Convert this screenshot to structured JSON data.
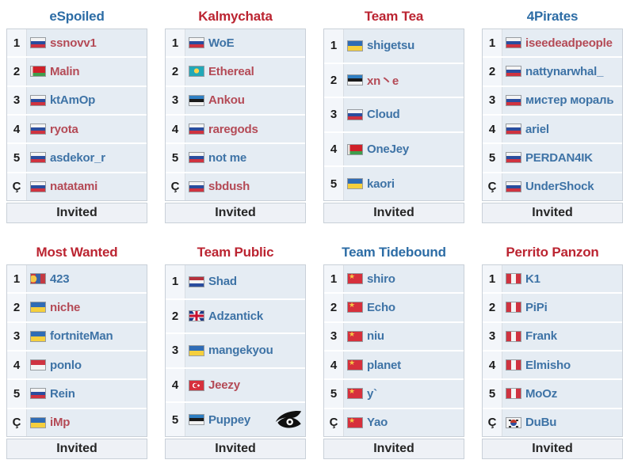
{
  "labels": {
    "invited": "Invited"
  },
  "colors": {
    "header_blue": "#2c6ca5",
    "header_red": "#bb2431",
    "link_blue": "#3e73a6",
    "link_red": "#b44a56",
    "row_background": "#e5ecf3",
    "logo_black": "#101010"
  },
  "flags": {
    "ru": "russia",
    "by": "belarus",
    "kz": "kazakhstan",
    "ee": "estonia",
    "ua": "ukraine",
    "mn": "mongolia",
    "id": "indonesia",
    "nl": "netherlands",
    "gb": "united-kingdom",
    "tr": "turkey",
    "cn": "china",
    "pe": "peru",
    "kr": "south-korea"
  },
  "teams": [
    {
      "name": "eSpoiled",
      "name_color": "blue",
      "players": [
        {
          "num": "1",
          "name": "ssnovv1",
          "flag": "ru",
          "color": "red"
        },
        {
          "num": "2",
          "name": "Malin",
          "flag": "by",
          "color": "red"
        },
        {
          "num": "3",
          "name": "ktAmOp",
          "flag": "ru",
          "color": "blue"
        },
        {
          "num": "4",
          "name": "ryota",
          "flag": "ru",
          "color": "red"
        },
        {
          "num": "5",
          "name": "asdekor_r",
          "flag": "ru",
          "color": "blue"
        },
        {
          "num": "Ç",
          "name": "natatami",
          "flag": "ru",
          "color": "red"
        }
      ]
    },
    {
      "name": "Kalmychata",
      "name_color": "red",
      "players": [
        {
          "num": "1",
          "name": "WoE",
          "flag": "ru",
          "color": "blue"
        },
        {
          "num": "2",
          "name": "Ethereal",
          "flag": "kz",
          "color": "red"
        },
        {
          "num": "3",
          "name": "Ankou",
          "flag": "ee",
          "color": "red"
        },
        {
          "num": "4",
          "name": "raregods",
          "flag": "ru",
          "color": "red"
        },
        {
          "num": "5",
          "name": "not me",
          "flag": "ru",
          "color": "blue"
        },
        {
          "num": "Ç",
          "name": "sbdush",
          "flag": "ru",
          "color": "red"
        }
      ]
    },
    {
      "name": "Team Tea",
      "name_color": "red",
      "players": [
        {
          "num": "1",
          "name": "shigetsu",
          "flag": "ua",
          "color": "blue"
        },
        {
          "num": "2",
          "name": "xn丶e",
          "flag": "ee",
          "color": "red"
        },
        {
          "num": "3",
          "name": "Cloud",
          "flag": "ru",
          "color": "blue"
        },
        {
          "num": "4",
          "name": "OneJey",
          "flag": "by",
          "color": "blue"
        },
        {
          "num": "5",
          "name": "kaori",
          "flag": "ua",
          "color": "blue"
        }
      ]
    },
    {
      "name": "4Pirates",
      "name_color": "blue",
      "players": [
        {
          "num": "1",
          "name": "iseedeadpeople",
          "flag": "ru",
          "color": "red"
        },
        {
          "num": "2",
          "name": "nattynarwhal_",
          "flag": "ru",
          "color": "blue"
        },
        {
          "num": "3",
          "name": "мистер мораль",
          "flag": "ru",
          "color": "blue"
        },
        {
          "num": "4",
          "name": "ariel",
          "flag": "ru",
          "color": "blue"
        },
        {
          "num": "5",
          "name": "PERDAN4IK",
          "flag": "ru",
          "color": "blue"
        },
        {
          "num": "Ç",
          "name": "UnderShock",
          "flag": "ru",
          "color": "blue"
        }
      ]
    },
    {
      "name": "Most Wanted",
      "name_color": "red",
      "players": [
        {
          "num": "1",
          "name": "423",
          "flag": "mn",
          "color": "blue"
        },
        {
          "num": "2",
          "name": "niche",
          "flag": "ua",
          "color": "red"
        },
        {
          "num": "3",
          "name": "fortniteMan",
          "flag": "ua",
          "color": "blue"
        },
        {
          "num": "4",
          "name": "ponlo",
          "flag": "id",
          "color": "blue"
        },
        {
          "num": "5",
          "name": "Rein",
          "flag": "ru",
          "color": "blue"
        },
        {
          "num": "Ç",
          "name": "iMp",
          "flag": "ua",
          "color": "red"
        }
      ]
    },
    {
      "name": "Team Public",
      "name_color": "red",
      "players": [
        {
          "num": "1",
          "name": "Shad",
          "flag": "nl",
          "color": "blue"
        },
        {
          "num": "2",
          "name": "Adzantick",
          "flag": "gb",
          "color": "blue"
        },
        {
          "num": "3",
          "name": "mangekyou",
          "flag": "ua",
          "color": "blue"
        },
        {
          "num": "4",
          "name": "Jeezy",
          "flag": "tr",
          "color": "red"
        },
        {
          "num": "5",
          "name": "Puppey",
          "flag": "ee",
          "color": "blue",
          "logo": "team-secret"
        }
      ]
    },
    {
      "name": "Team Tidebound",
      "name_color": "blue",
      "players": [
        {
          "num": "1",
          "name": "shiro",
          "flag": "cn",
          "color": "blue"
        },
        {
          "num": "2",
          "name": "Echo",
          "flag": "cn",
          "color": "blue"
        },
        {
          "num": "3",
          "name": "niu",
          "flag": "cn",
          "color": "blue"
        },
        {
          "num": "4",
          "name": "planet",
          "flag": "cn",
          "color": "blue"
        },
        {
          "num": "5",
          "name": "y`",
          "flag": "cn",
          "color": "blue"
        },
        {
          "num": "Ç",
          "name": "Yao",
          "flag": "cn",
          "color": "blue"
        }
      ]
    },
    {
      "name": "Perrito Panzon",
      "name_color": "red",
      "players": [
        {
          "num": "1",
          "name": "K1",
          "flag": "pe",
          "color": "blue"
        },
        {
          "num": "2",
          "name": "PiPi",
          "flag": "pe",
          "color": "blue"
        },
        {
          "num": "3",
          "name": "Frank",
          "flag": "pe",
          "color": "blue"
        },
        {
          "num": "4",
          "name": "Elmisho",
          "flag": "pe",
          "color": "blue"
        },
        {
          "num": "5",
          "name": "MoOz",
          "flag": "pe",
          "color": "blue"
        },
        {
          "num": "Ç",
          "name": "DuBu",
          "flag": "kr",
          "color": "blue"
        }
      ]
    }
  ]
}
